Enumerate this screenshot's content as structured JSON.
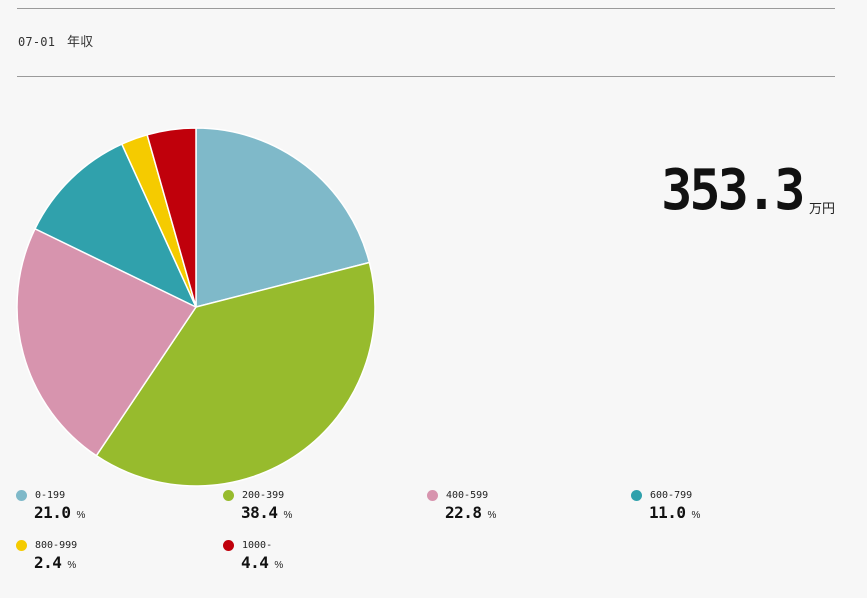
{
  "header": {
    "code": "07-01",
    "title": "年収"
  },
  "summary": {
    "value": "353.3",
    "unit": "万円"
  },
  "chart_data": {
    "type": "pie",
    "categories": [
      "0-199",
      "200-399",
      "400-599",
      "600-799",
      "800-999",
      "1000-"
    ],
    "values": [
      21.0,
      38.4,
      22.8,
      11.0,
      2.4,
      4.4
    ],
    "colors": [
      "#7fb9c9",
      "#97bb2d",
      "#d794ae",
      "#30a1ac",
      "#f5cb00",
      "#c0000b"
    ],
    "unit": "%",
    "start_angle": "12 o'clock",
    "direction": "clockwise",
    "legend": "bottom"
  },
  "legend": [
    {
      "label": "0-199",
      "value": "21.0",
      "unit": "%",
      "color": "#7fb9c9"
    },
    {
      "label": "200-399",
      "value": "38.4",
      "unit": "%",
      "color": "#97bb2d"
    },
    {
      "label": "400-599",
      "value": "22.8",
      "unit": "%",
      "color": "#d794ae"
    },
    {
      "label": "600-799",
      "value": "11.0",
      "unit": "%",
      "color": "#30a1ac"
    },
    {
      "label": "800-999",
      "value": "2.4",
      "unit": "%",
      "color": "#f5cb00"
    },
    {
      "label": "1000-",
      "value": "4.4",
      "unit": "%",
      "color": "#c0000b"
    }
  ]
}
